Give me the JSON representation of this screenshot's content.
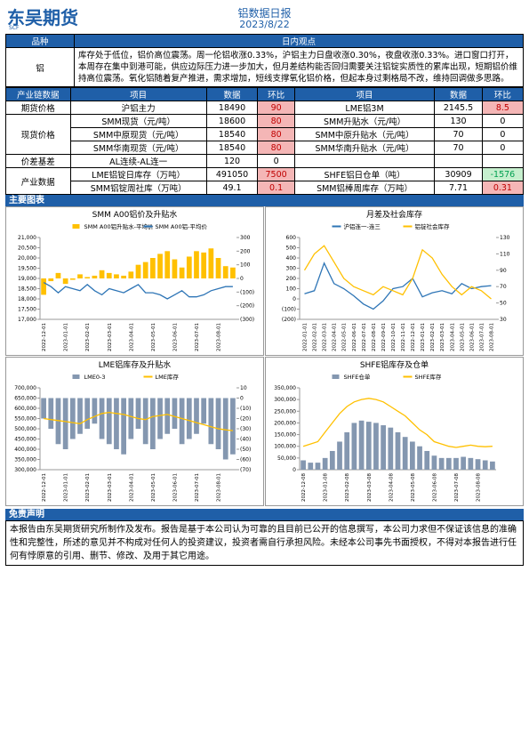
{
  "header": {
    "logo": "东吴期货",
    "logo_mark": "SCF",
    "title": "铝数据日报",
    "date": "2023/8/22"
  },
  "views": {
    "headers": [
      "品种",
      "日内观点"
    ],
    "rows": [
      [
        "铝",
        "库存处于低位，铝价高位震荡。周一伦铝收涨0.33%，沪铝主力日盘收涨0.30%，夜盘收涨0.33%。进口窗口打开，本周存在集中到港可能，供应边际压力进一步加大，但月差结构能否回归需要关注铝锭实质性的累库出现，短期铝价维持高位震荡。氧化铝随着复产推进，需求增加，短线支撑氧化铝价格，但起本身过剩格局不改，维持回调做多思路。"
      ]
    ]
  },
  "industry": {
    "headers": [
      "产业链数据",
      "项目",
      "数据",
      "环比",
      "项目",
      "数据",
      "环比"
    ],
    "groups": [
      {
        "name": "期货价格",
        "rows": [
          [
            "沪铝主力",
            18490,
            90,
            "LME铝3M",
            2145.5,
            8.5
          ]
        ]
      },
      {
        "name": "现货价格",
        "rows": [
          [
            "SMM现货（元/吨）",
            18600,
            80,
            "SMM升贴水（元/吨）",
            130,
            0
          ],
          [
            "SMM中原现货（元/吨）",
            18540,
            80,
            "SMM中原升贴水（元/吨）",
            70,
            0
          ],
          [
            "SMM华南现货（元/吨）",
            18540,
            80,
            "SMM华南升贴水（元/吨）",
            70,
            0
          ]
        ]
      },
      {
        "name": "价差基差",
        "rows": [
          [
            "AL连续-AL连一",
            120,
            0
          ]
        ]
      },
      {
        "name": "产业数据",
        "rows": [
          [
            "LME铝锭日库存（万吨）",
            491050,
            7500,
            "SHFE铝日仓单（吨）",
            30909,
            -1576
          ],
          [
            "SMM铝锭周社库（万吨）",
            49.1,
            0.1,
            "SMM铝棒周库存（万吨）",
            7.71,
            0.31
          ]
        ]
      }
    ]
  },
  "charts_title": "主要图表",
  "chart_data": [
    {
      "type": "combo",
      "title": "SMM A00铝价及升贴水",
      "categories": [
        "2022-12-01",
        null,
        null,
        "2023-01-01",
        null,
        null,
        "2023-02-01",
        null,
        null,
        "2023-03-01",
        null,
        null,
        "2023-04-01",
        null,
        null,
        "2023-05-01",
        null,
        null,
        "2023-06-01",
        null,
        null,
        "2023-07-01",
        null,
        null,
        "2023-08-01",
        null,
        null
      ],
      "series": [
        {
          "name": "SMM A00铝升贴水-平均价",
          "kind": "bar",
          "axis": "y2",
          "color": "#ffc000",
          "values": [
            -120,
            -20,
            40,
            -40,
            -10,
            30,
            10,
            20,
            60,
            40,
            30,
            20,
            50,
            100,
            120,
            150,
            180,
            200,
            140,
            80,
            160,
            200,
            190,
            220,
            150,
            90,
            80
          ]
        },
        {
          "name": "SMM A00铝-平均价",
          "kind": "line",
          "axis": "y",
          "color": "#2e75b6",
          "values": [
            18800,
            18600,
            18300,
            18600,
            18500,
            18400,
            18700,
            18400,
            18200,
            18500,
            18400,
            18300,
            18500,
            18700,
            18300,
            18300,
            18200,
            18000,
            18200,
            18400,
            18100,
            18100,
            18200,
            18400,
            18500,
            18600,
            18600
          ]
        }
      ],
      "ylim": [
        17000,
        21000
      ],
      "yticks": [
        {
          "value": 17000,
          "label": "17,000"
        },
        {
          "value": 17500,
          "label": "17,500"
        },
        {
          "value": 18000,
          "label": "18,000"
        },
        {
          "value": 18500,
          "label": "18,500"
        },
        {
          "value": 19000,
          "label": "19,000"
        },
        {
          "value": 19500,
          "label": "19,500"
        },
        {
          "value": 20000,
          "label": "20,000"
        },
        {
          "value": 20500,
          "label": "20,500"
        },
        {
          "value": 21000,
          "label": "21,000"
        }
      ],
      "y2lim": [
        -300,
        300
      ],
      "y2ticks": [
        {
          "value": -300,
          "label": "(300)"
        },
        {
          "value": -200,
          "label": "(200)"
        },
        {
          "value": -100,
          "label": "(100)"
        },
        0,
        100,
        200,
        300
      ]
    },
    {
      "type": "combo",
      "title": "月差及社会库存",
      "categories": [
        "2022-01-01",
        "2022-02-01",
        "2022-03-01",
        "2022-04-01",
        "2022-05-01",
        "2022-06-01",
        "2022-07-01",
        "2022-08-01",
        "2022-09-01",
        "2022-10-01",
        "2022-11-01",
        "2022-12-01",
        "2023-01-01",
        "2023-02-01",
        "2023-03-01",
        "2023-04-01",
        "2023-05-01",
        "2023-06-01",
        "2023-07-01",
        "2023-08-01"
      ],
      "series": [
        {
          "name": "沪铝连一-连三",
          "kind": "line",
          "axis": "y",
          "color": "#2e75b6",
          "values": [
            50,
            80,
            350,
            150,
            100,
            30,
            -50,
            -100,
            -20,
            100,
            120,
            200,
            20,
            60,
            80,
            50,
            150,
            100,
            120,
            130
          ]
        },
        {
          "name": "铝锭社会库存",
          "kind": "line",
          "axis": "y2",
          "color": "#ffc000",
          "values": [
            90,
            110,
            120,
            100,
            80,
            70,
            65,
            60,
            70,
            65,
            60,
            80,
            115,
            105,
            85,
            70,
            60,
            70,
            65,
            55
          ]
        }
      ],
      "ylim": [
        -200,
        600
      ],
      "yticks": [
        {
          "value": -200,
          "label": "(200)"
        },
        {
          "value": -100,
          "label": "(100)"
        },
        0,
        100,
        200,
        300,
        400,
        500,
        600
      ],
      "y2lim": [
        30,
        130
      ],
      "y2ticks": [
        30,
        50,
        70,
        90,
        110,
        130
      ]
    },
    {
      "type": "combo",
      "title": "LME铝库存及升贴水",
      "categories": [
        "2022-12-01",
        null,
        null,
        "2023-01-01",
        null,
        null,
        "2023-02-01",
        null,
        null,
        "2023-03-01",
        null,
        null,
        "2023-04-01",
        null,
        null,
        "2023-05-01",
        null,
        null,
        "2023-06-01",
        null,
        null,
        "2023-07-01",
        null,
        null,
        "2023-08-01",
        null,
        null
      ],
      "series": [
        {
          "name": "LME0-3",
          "kind": "bar",
          "axis": "y2",
          "color": "#8497b0",
          "values": [
            -20,
            -30,
            -45,
            -50,
            -40,
            -35,
            -30,
            -25,
            -40,
            -45,
            -50,
            -55,
            -40,
            -30,
            -45,
            -50,
            -40,
            -35,
            -30,
            -45,
            -40,
            -35,
            -25,
            -45,
            -50,
            -60,
            -55
          ]
        },
        {
          "name": "LME库存",
          "kind": "line",
          "axis": "y",
          "color": "#ffc000",
          "values": [
            550000,
            545000,
            540000,
            535000,
            530000,
            525000,
            545000,
            560000,
            575000,
            580000,
            575000,
            570000,
            560000,
            550000,
            545000,
            560000,
            565000,
            570000,
            560000,
            550000,
            540000,
            530000,
            520000,
            510000,
            500000,
            495000,
            491050
          ]
        }
      ],
      "ylim": [
        300000,
        700000
      ],
      "yticks": [
        {
          "value": 300000,
          "label": "300,000"
        },
        {
          "value": 350000,
          "label": "350,000"
        },
        {
          "value": 400000,
          "label": "400,000"
        },
        {
          "value": 450000,
          "label": "450,000"
        },
        {
          "value": 500000,
          "label": "500,000"
        },
        {
          "value": 550000,
          "label": "550,000"
        },
        {
          "value": 600000,
          "label": "600,000"
        },
        {
          "value": 650000,
          "label": "650,000"
        },
        {
          "value": 700000,
          "label": "700,000"
        }
      ],
      "y2lim": [
        -70,
        10
      ],
      "y2ticks": [
        {
          "value": -70,
          "label": "(70)"
        },
        {
          "value": -60,
          "label": "(60)"
        },
        {
          "value": -50,
          "label": "(50)"
        },
        {
          "value": -40,
          "label": "(40)"
        },
        {
          "value": -30,
          "label": "(30)"
        },
        {
          "value": -20,
          "label": "(20)"
        },
        {
          "value": -10,
          "label": "(10)"
        },
        0,
        10
      ]
    },
    {
      "type": "combo",
      "title": "SHFE铝库存及仓单",
      "categories": [
        "2022-12-08",
        null,
        null,
        "2023-01-08",
        null,
        null,
        "2023-02-08",
        null,
        null,
        "2023-03-08",
        null,
        null,
        "2023-04-08",
        null,
        null,
        "2023-05-08",
        null,
        null,
        "2023-06-08",
        null,
        null,
        "2023-07-08",
        null,
        null,
        "2023-08-08",
        null,
        null
      ],
      "series": [
        {
          "name": "SHFE仓单",
          "kind": "bar",
          "axis": "y",
          "color": "#8497b0",
          "values": [
            40000,
            30000,
            30000,
            50000,
            80000,
            120000,
            160000,
            200000,
            210000,
            205000,
            200000,
            190000,
            180000,
            160000,
            140000,
            120000,
            100000,
            80000,
            60000,
            50000,
            50000,
            50000,
            55000,
            50000,
            45000,
            40000,
            35000
          ]
        },
        {
          "name": "SHFE库存",
          "kind": "line",
          "axis": "y",
          "color": "#ffc000",
          "values": [
            100000,
            110000,
            120000,
            160000,
            200000,
            240000,
            270000,
            290000,
            300000,
            305000,
            300000,
            290000,
            270000,
            250000,
            230000,
            200000,
            170000,
            150000,
            120000,
            110000,
            100000,
            95000,
            100000,
            105000,
            100000,
            98000,
            100000
          ]
        }
      ],
      "ylim": [
        0,
        350000
      ],
      "yticks": [
        0,
        {
          "value": 50000,
          "label": "50,000"
        },
        {
          "value": 100000,
          "label": "100,000"
        },
        {
          "value": 150000,
          "label": "150,000"
        },
        {
          "value": 200000,
          "label": "200,000"
        },
        {
          "value": 250000,
          "label": "250,000"
        },
        {
          "value": 300000,
          "label": "300,000"
        },
        {
          "value": 350000,
          "label": "350,000"
        }
      ]
    }
  ],
  "disclaimer": {
    "title": "免责声明",
    "text": "本报告由东吴期货研究所制作及发布。报告是基于本公司认为可靠的且目前已公开的信息撰写，本公司力求但不保证该信息的准确性和完整性，所述的意见并不构成对任何人的投资建议，投资者需自行承担风险。未经本公司事先书面授权，不得对本报告进行任何有悖原意的引用、删节、修改、及用于其它用途。"
  }
}
